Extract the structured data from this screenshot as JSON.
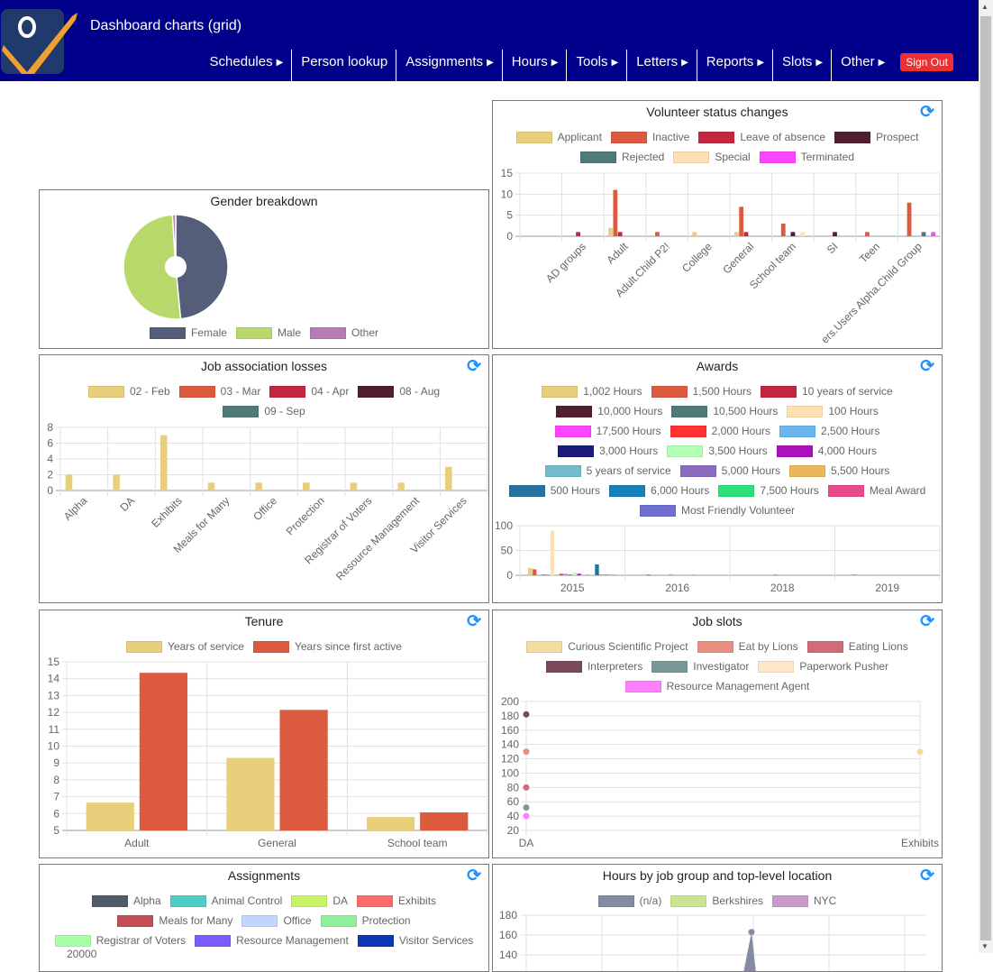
{
  "header": {
    "title": "Dashboard charts (grid)",
    "nav": [
      {
        "label": "Schedules",
        "submenu": true
      },
      {
        "label": "Person lookup",
        "submenu": false
      },
      {
        "label": "Assignments",
        "submenu": true
      },
      {
        "label": "Hours",
        "submenu": true
      },
      {
        "label": "Tools",
        "submenu": true
      },
      {
        "label": "Letters",
        "submenu": true
      },
      {
        "label": "Reports",
        "submenu": true
      },
      {
        "label": "Slots",
        "submenu": true
      },
      {
        "label": "Other",
        "submenu": true
      }
    ],
    "sign_out": "Sign Out",
    "arrow": "▶",
    "refresh_icon": "⟳"
  },
  "chart_data": [
    {
      "type": "bar",
      "title": "Volunteer status changes",
      "legend": "top",
      "grid": true,
      "ylim": [
        0,
        15
      ],
      "yticks": [
        "0",
        "5",
        "10",
        "15"
      ],
      "categories": [
        "",
        "AD groups",
        "Adult",
        "Adult.Child P2!",
        "College",
        "General",
        "School team",
        "SI",
        "Teen",
        "ers.Users Alpha.Child Group"
      ],
      "series": [
        {
          "name": "Applicant",
          "color": "#e9cf7b",
          "values": [
            0,
            0,
            2,
            0,
            1,
            1,
            0,
            0,
            0,
            0
          ]
        },
        {
          "name": "Inactive",
          "color": "#dc5a40",
          "values": [
            0,
            0,
            11,
            1,
            0,
            7,
            3,
            0,
            1,
            8
          ]
        },
        {
          "name": "Leave of absence",
          "color": "#c5263f",
          "values": [
            0,
            1,
            1,
            0,
            0,
            1,
            0,
            0,
            0,
            0
          ]
        },
        {
          "name": "Prospect",
          "color": "#4f1f2f",
          "values": [
            0,
            0,
            0,
            0,
            0,
            0,
            1,
            1,
            0,
            0
          ]
        },
        {
          "name": "Rejected",
          "color": "#4f7a79",
          "values": [
            0,
            0,
            0,
            0,
            0,
            0,
            0,
            0,
            0,
            1
          ]
        },
        {
          "name": "Special",
          "color": "#ffe0b3",
          "values": [
            0,
            0,
            0,
            0,
            0,
            0,
            1,
            0,
            0,
            0
          ]
        },
        {
          "name": "Terminated",
          "color": "#ff44ff",
          "values": [
            0,
            0,
            0,
            0,
            0,
            0,
            0,
            0,
            0,
            1
          ]
        }
      ]
    },
    {
      "type": "pie",
      "title": "Gender breakdown",
      "legend": "bottom",
      "series": [
        {
          "name": "Female",
          "color": "#545e7a",
          "value": 48.5
        },
        {
          "name": "Male",
          "color": "#b8d86b",
          "value": 50.5
        },
        {
          "name": "Other",
          "color": "#b77bb5",
          "value": 1
        }
      ]
    },
    {
      "type": "bar",
      "title": "Job association losses",
      "legend": "top",
      "grid": true,
      "ylim": [
        0,
        8
      ],
      "yticks": [
        "0",
        "2",
        "4",
        "6",
        "8"
      ],
      "categories": [
        "Alpha",
        "DA",
        "Exhibits",
        "Meals for Many",
        "Office",
        "Protection",
        "Registrar of Voters",
        "Resource Management",
        "Visitor Services"
      ],
      "series": [
        {
          "name": "02 - Feb",
          "color": "#e9cf7b",
          "values": [
            2,
            2,
            7,
            1,
            1,
            1,
            1,
            1,
            3
          ]
        },
        {
          "name": "03 - Mar",
          "color": "#dc5a40",
          "values": [
            0,
            0,
            0,
            0,
            0,
            0,
            0,
            0,
            0
          ]
        },
        {
          "name": "04 - Apr",
          "color": "#c5263f",
          "values": [
            0,
            0,
            0,
            0,
            0,
            0,
            0,
            0,
            0
          ]
        },
        {
          "name": "08 - Aug",
          "color": "#4f1f2f",
          "values": [
            0,
            0,
            0,
            0,
            0,
            0,
            0,
            0,
            0
          ]
        },
        {
          "name": "09 - Sep",
          "color": "#4f7a79",
          "values": [
            0,
            0,
            0,
            0,
            0,
            0,
            0,
            0,
            0
          ]
        }
      ]
    },
    {
      "type": "bar",
      "title": "Awards",
      "legend": "top",
      "grid": true,
      "ylim": [
        0,
        100
      ],
      "yticks": [
        "0",
        "50",
        "100"
      ],
      "categories": [
        "2015",
        "2016",
        "2018",
        "2019"
      ],
      "series": [
        {
          "name": "1,002 Hours",
          "color": "#e9cf7b",
          "values": [
            15,
            0,
            0,
            0
          ]
        },
        {
          "name": "1,500 Hours",
          "color": "#dc5a40",
          "values": [
            12,
            0,
            0,
            0
          ]
        },
        {
          "name": "10 years of service",
          "color": "#c5263f",
          "values": [
            0,
            0,
            0,
            1
          ]
        },
        {
          "name": "10,000 Hours",
          "color": "#4f1f2f",
          "values": [
            1,
            1,
            0,
            0
          ]
        },
        {
          "name": "10,500 Hours",
          "color": "#4f7a79",
          "values": [
            1,
            0,
            0,
            0
          ]
        },
        {
          "name": "100 Hours",
          "color": "#ffe0b3",
          "values": [
            90,
            0,
            0,
            0
          ]
        },
        {
          "name": "17,500 Hours",
          "color": "#ff44ff",
          "values": [
            1,
            0,
            0,
            0
          ]
        },
        {
          "name": "2,000 Hours",
          "color": "#ff3333",
          "values": [
            3,
            0,
            0,
            0
          ]
        },
        {
          "name": "2,500 Hours",
          "color": "#6ab7f0",
          "values": [
            3,
            2,
            2,
            0
          ]
        },
        {
          "name": "3,000 Hours",
          "color": "#1a1a7a",
          "values": [
            1,
            0,
            0,
            0
          ]
        },
        {
          "name": "3,500 Hours",
          "color": "#b3ffb3",
          "values": [
            6,
            0,
            0,
            0
          ]
        },
        {
          "name": "4,000 Hours",
          "color": "#aa11bb",
          "values": [
            3,
            0,
            0,
            0
          ]
        },
        {
          "name": "5 years of service",
          "color": "#72bccb",
          "values": [
            1,
            0,
            0,
            0
          ]
        },
        {
          "name": "5,000 Hours",
          "color": "#8a6bbf",
          "values": [
            1,
            1,
            0,
            0
          ]
        },
        {
          "name": "5,500 Hours",
          "color": "#ebb75c",
          "values": [
            1,
            0,
            0,
            0
          ]
        },
        {
          "name": "500 Hours",
          "color": "#2672a0",
          "values": [
            22,
            0,
            0,
            0
          ]
        },
        {
          "name": "6,000 Hours",
          "color": "#1681b8",
          "values": [
            1,
            0,
            0,
            0
          ]
        },
        {
          "name": "7,500 Hours",
          "color": "#2ee07a",
          "values": [
            2,
            0,
            0,
            0
          ]
        },
        {
          "name": "Meal Award",
          "color": "#e84a8a",
          "values": [
            1,
            0,
            0,
            0
          ]
        },
        {
          "name": "Most Friendly Volunteer",
          "color": "#6f6fd1",
          "values": [
            1,
            0,
            0,
            0
          ]
        }
      ]
    },
    {
      "type": "bar",
      "title": "Tenure",
      "legend": "top",
      "grid": true,
      "ylim": [
        5,
        15
      ],
      "yticks": [
        "5",
        "6",
        "7",
        "8",
        "9",
        "10",
        "11",
        "12",
        "13",
        "14",
        "15"
      ],
      "categories": [
        "Adult",
        "General",
        "School team"
      ],
      "series": [
        {
          "name": "Years of service",
          "color": "#e9cf7b",
          "values": [
            6.65,
            9.3,
            5.8
          ]
        },
        {
          "name": "Years since first active",
          "color": "#dc5a40",
          "values": [
            14.35,
            12.15,
            6.07
          ]
        }
      ]
    },
    {
      "type": "scatter",
      "title": "Job slots",
      "legend": "top",
      "grid": true,
      "ylim": [
        20,
        200
      ],
      "yticks": [
        "20",
        "40",
        "60",
        "80",
        "100",
        "120",
        "140",
        "160",
        "180",
        "200"
      ],
      "categories": [
        "DA",
        "Exhibits"
      ],
      "series": [
        {
          "name": "Curious Scientific Project",
          "color": "#f2dca0",
          "values": [
            null,
            130
          ]
        },
        {
          "name": "Eat by Lions",
          "color": "#e89080",
          "values": [
            130,
            null
          ]
        },
        {
          "name": "Eating Lions",
          "color": "#d46a78",
          "values": [
            80,
            null
          ]
        },
        {
          "name": "Interpreters",
          "color": "#7a4a58",
          "values": [
            182,
            null
          ]
        },
        {
          "name": "Investigator",
          "color": "#7a9898",
          "values": [
            52,
            null
          ]
        },
        {
          "name": "Paperwork Pusher",
          "color": "#ffe8c8",
          "values": [
            null,
            null
          ]
        },
        {
          "name": "Resource Management Agent",
          "color": "#ff80ff",
          "values": [
            40,
            null
          ]
        }
      ]
    },
    {
      "type": "bar",
      "title": "Assignments",
      "legend": "top",
      "yticks": [
        "20000"
      ],
      "series": [
        {
          "name": "Alpha",
          "color": "#505c6a"
        },
        {
          "name": "Animal Control",
          "color": "#4ecdc4"
        },
        {
          "name": "DA",
          "color": "#c7f464"
        },
        {
          "name": "Exhibits",
          "color": "#ff6b6b"
        },
        {
          "name": "Meals for Many",
          "color": "#c44d58"
        },
        {
          "name": "Office",
          "color": "#c0d6ff"
        },
        {
          "name": "Protection",
          "color": "#8ef09a"
        },
        {
          "name": "Registrar of Voters",
          "color": "#a8ffa8"
        },
        {
          "name": "Resource Management",
          "color": "#7b5cff"
        },
        {
          "name": "Visitor Services",
          "color": "#0a37b4"
        }
      ]
    },
    {
      "type": "area",
      "title": "Hours by job group and top-level location",
      "legend": "top",
      "grid": true,
      "yticks": [
        "140",
        "160",
        "180"
      ],
      "series": [
        {
          "name": "(n/a)",
          "color": "#858ba0",
          "peak": 163
        },
        {
          "name": "Berkshires",
          "color": "#cce38f"
        },
        {
          "name": "NYC",
          "color": "#c99bc8"
        }
      ]
    }
  ]
}
